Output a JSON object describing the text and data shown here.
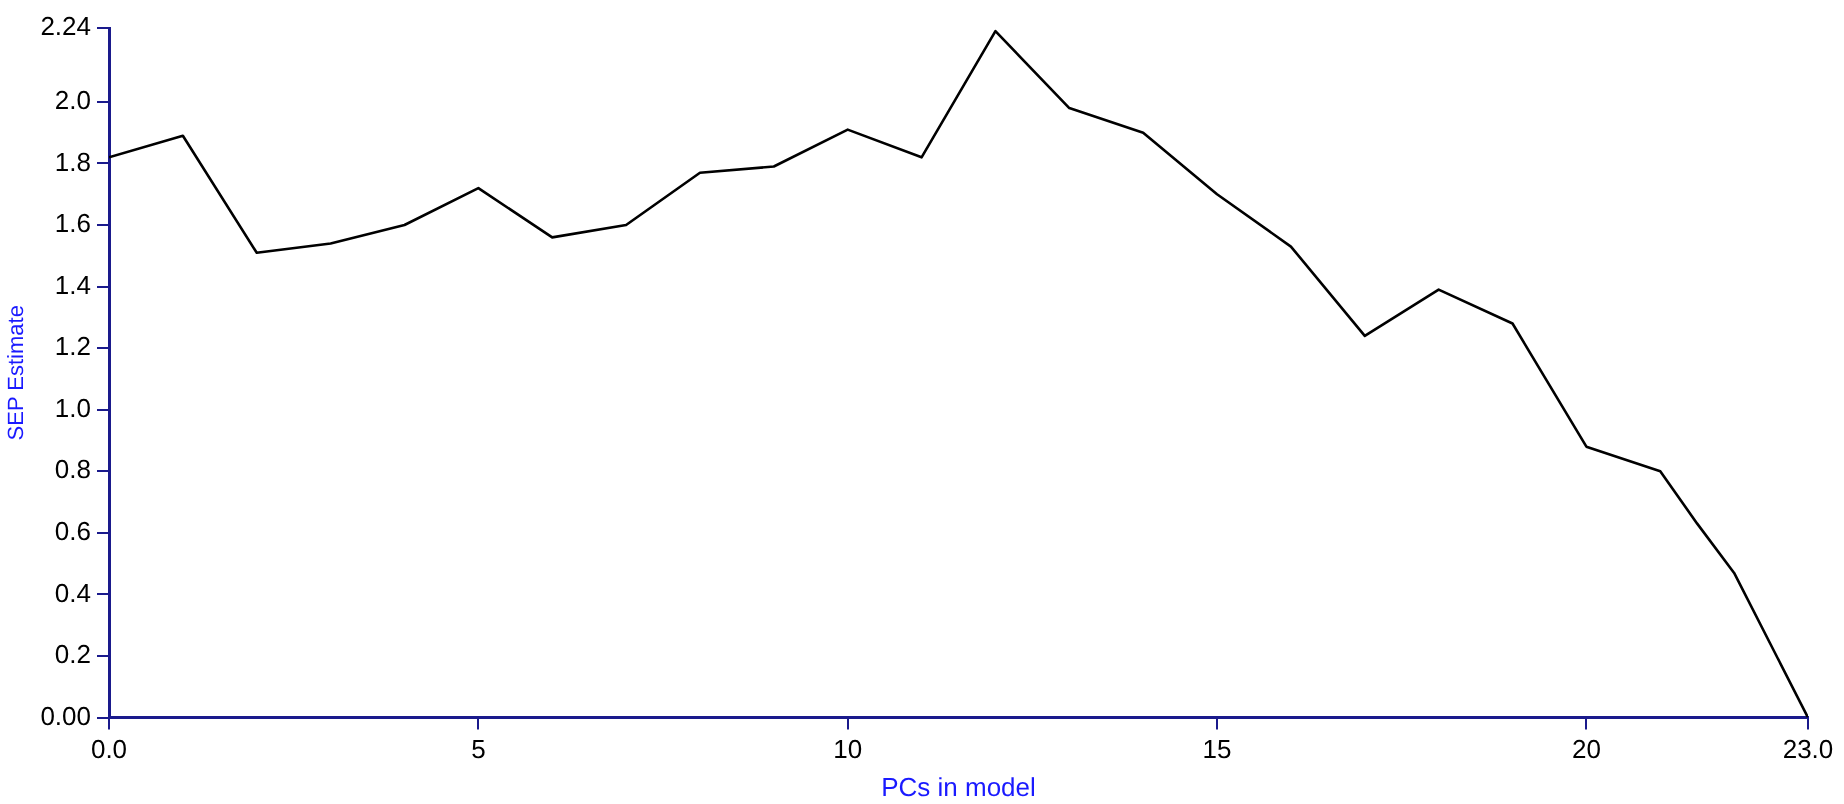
{
  "chart_data": {
    "type": "line",
    "xlabel": "PCs in model",
    "ylabel": "SEP Estimate",
    "x": [
      0,
      1,
      2,
      3,
      4,
      5,
      6,
      7,
      8,
      9,
      10,
      11,
      12,
      13,
      14,
      15,
      16,
      17,
      18,
      19,
      20,
      21,
      21.5,
      22,
      23
    ],
    "series": [
      {
        "color": "#000000",
        "values": [
          1.82,
          1.89,
          1.51,
          1.54,
          1.6,
          1.72,
          1.56,
          1.6,
          1.77,
          1.79,
          1.91,
          1.82,
          2.23,
          1.98,
          1.9,
          1.7,
          1.53,
          1.24,
          1.39,
          1.28,
          0.88,
          0.8,
          0.63,
          0.47,
          0
        ]
      }
    ],
    "xlim": [
      0,
      23
    ],
    "xticks": [
      {
        "value": 0,
        "label": "0.0"
      },
      5,
      10,
      15,
      20,
      {
        "value": 23,
        "label": "23.0"
      }
    ],
    "ylim": [
      0,
      2.24
    ],
    "yticks": [
      {
        "value": 0,
        "label": "0.00"
      },
      0.2,
      0.4,
      0.6,
      0.8,
      {
        "value": 1,
        "label": "1.0"
      },
      1.2,
      1.4,
      1.6,
      1.8,
      {
        "value": 2,
        "label": "2.0"
      },
      2.24
    ],
    "grid": false,
    "legend": false,
    "marker": "none",
    "line_style": "solid"
  }
}
